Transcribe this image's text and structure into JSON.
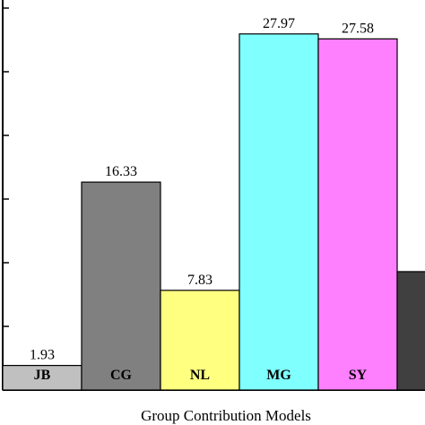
{
  "chart_data": {
    "type": "bar",
    "categories": [
      "JB",
      "CG",
      "NL",
      "MG",
      "SY",
      ""
    ],
    "values": [
      1.93,
      16.33,
      7.83,
      27.97,
      27.58,
      9.3
    ],
    "value_labels": [
      "1.93",
      "16.33",
      "7.83",
      "27.97",
      "27.58",
      ""
    ],
    "colors": [
      "#c0c0c0",
      "#808080",
      "#ffff80",
      "#80ffff",
      "#ff80ff",
      "#404040"
    ],
    "xlabel": "Group Contribution Models",
    "ylabel": "",
    "ylim": [
      0,
      30
    ],
    "grid": false
  }
}
